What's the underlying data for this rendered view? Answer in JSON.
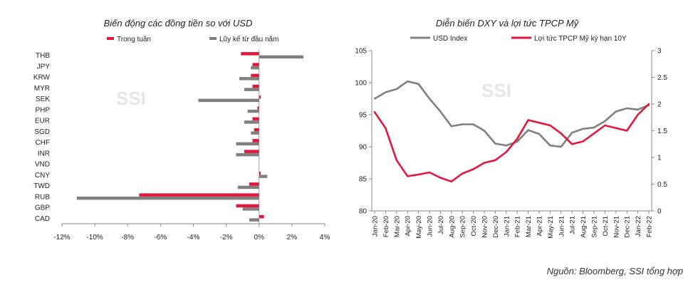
{
  "source_note": "Nguồn: Bloomberg, SSI tổng hợp",
  "watermark": "SSI",
  "colors": {
    "red": "#e4163a",
    "gray": "#808080",
    "axis": "#888888"
  },
  "chart_data": [
    {
      "type": "bar",
      "orientation": "horizontal",
      "title": "Biến động các đồng tiền so với USD",
      "categories": [
        "THB",
        "JPY",
        "KRW",
        "MYR",
        "SEK",
        "PHP",
        "EUR",
        "SGD",
        "CHF",
        "INR",
        "VND",
        "CNY",
        "TWD",
        "RUB",
        "GBP",
        "CAD"
      ],
      "series": [
        {
          "name": "Trong tuần",
          "color": "#e4163a",
          "values": [
            -1.1,
            -0.4,
            -0.5,
            -0.4,
            0.1,
            -0.1,
            -0.4,
            -0.3,
            -0.4,
            -0.9,
            0.0,
            0.1,
            -0.6,
            -7.3,
            -1.4,
            0.3
          ]
        },
        {
          "name": "Lũy kế từ đầu năm",
          "color": "#808080",
          "values": [
            2.7,
            -0.5,
            -1.2,
            -0.9,
            -3.7,
            -0.7,
            -0.9,
            -0.5,
            -1.4,
            -1.4,
            0.0,
            0.5,
            -1.3,
            -11.1,
            -1.0,
            -0.6
          ]
        }
      ],
      "xlim": [
        -12,
        4
      ],
      "xticks": [
        "-12%",
        "-10%",
        "-8%",
        "-6%",
        "-4%",
        "-2%",
        "0%",
        "2%",
        "4%"
      ],
      "xlabel": "",
      "ylabel": "",
      "legend": "top-left",
      "grid": false
    },
    {
      "type": "line",
      "title": "Diễn biến DXY và lợi tức TPCP Mỹ",
      "x": [
        "Jan-20",
        "Feb-20",
        "Mar-20",
        "Apr-20",
        "May-20",
        "Jun-20",
        "Jul-20",
        "Aug-20",
        "Sep-20",
        "Oct-20",
        "Nov-20",
        "Dec-20",
        "Jan-21",
        "Feb-21",
        "Mar-21",
        "Apr-21",
        "May-21",
        "Jun-21",
        "Jul-21",
        "Aug-21",
        "Sep-21",
        "Oct-21",
        "Nov-21",
        "Dec-21",
        "Jan-22",
        "Feb-22"
      ],
      "series": [
        {
          "name": "USD Index",
          "axis": "left",
          "color": "#808080",
          "values": [
            97.5,
            98.5,
            99.0,
            100.2,
            99.8,
            97.5,
            95.5,
            93.2,
            93.5,
            93.5,
            92.5,
            90.5,
            90.2,
            90.8,
            92.6,
            92.0,
            90.2,
            90.0,
            92.2,
            92.8,
            93.0,
            94.0,
            95.5,
            96.0,
            95.8,
            96.5
          ]
        },
        {
          "name": "Lợi tức TPCP Mỹ kỳ hạn 10Y",
          "axis": "right",
          "color": "#e4163a",
          "values": [
            1.85,
            1.55,
            0.95,
            0.65,
            0.68,
            0.72,
            0.62,
            0.55,
            0.7,
            0.78,
            0.9,
            0.95,
            1.1,
            1.35,
            1.7,
            1.65,
            1.6,
            1.45,
            1.25,
            1.3,
            1.45,
            1.6,
            1.55,
            1.5,
            1.8,
            2.0
          ]
        }
      ],
      "ylim_left": [
        80,
        105
      ],
      "yticks_left": [
        "80",
        "85",
        "90",
        "95",
        "100",
        "105"
      ],
      "ylim_right": [
        0,
        3
      ],
      "yticks_right": [
        "0",
        "0.5",
        "1",
        "1.5",
        "2",
        "2.5",
        "3"
      ],
      "xlabel": "",
      "ylabel": "",
      "legend": "top",
      "grid": false
    }
  ]
}
